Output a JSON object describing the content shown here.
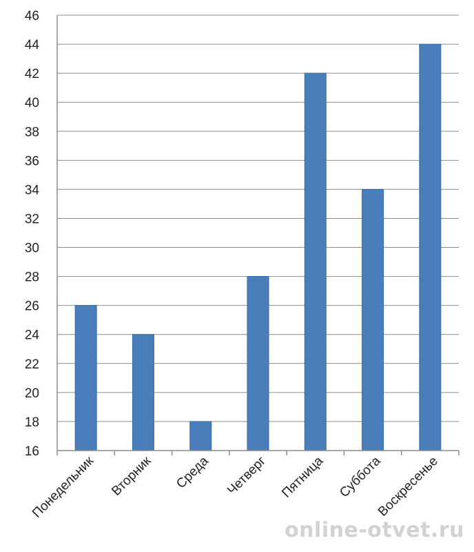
{
  "chart_data": {
    "type": "bar",
    "categories": [
      "Понедельник",
      "Вторник",
      "Среда",
      "Четверг",
      "Пятница",
      "Суббота",
      "Воскресенье"
    ],
    "values": [
      26,
      24,
      18,
      28,
      42,
      34,
      44
    ],
    "title": "",
    "xlabel": "",
    "ylabel": "",
    "ylim": [
      16,
      46
    ],
    "yticks": [
      16,
      18,
      20,
      22,
      24,
      26,
      28,
      30,
      32,
      34,
      36,
      38,
      40,
      42,
      44,
      46
    ],
    "grid": true,
    "legend": "none",
    "colors": {
      "bar": "#4a7ebb",
      "bar_edge": "#3a6aa3",
      "grid": "#8c8c8c",
      "text": "#222222"
    }
  },
  "watermark": "online-otvet.ru"
}
